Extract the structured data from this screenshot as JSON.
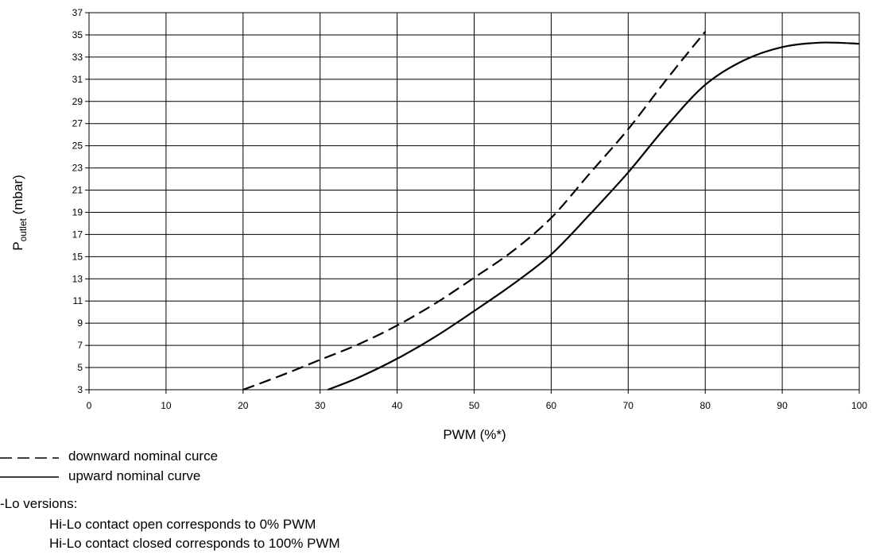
{
  "chart_data": {
    "type": "line",
    "xlabel": "PWM (%*)",
    "ylabel_main": "P",
    "ylabel_sub": "outlet",
    "ylabel_unit": " (mbar)",
    "xlim": [
      0,
      100
    ],
    "ylim": [
      3,
      37
    ],
    "x_ticks": [
      0,
      10,
      20,
      30,
      40,
      50,
      60,
      70,
      80,
      90,
      100
    ],
    "y_ticks": [
      3,
      5,
      7,
      9,
      11,
      13,
      15,
      17,
      19,
      21,
      23,
      25,
      27,
      29,
      31,
      33,
      35,
      37
    ],
    "grid": true,
    "series": [
      {
        "name": "downward nominal curce",
        "style": "dashed",
        "x": [
          20,
          25,
          30,
          35,
          40,
          45,
          50,
          55,
          60,
          65,
          70,
          75,
          80
        ],
        "y": [
          3.0,
          4.3,
          5.7,
          7.1,
          8.8,
          10.8,
          13.1,
          15.5,
          18.5,
          22.5,
          26.5,
          31.0,
          35.3
        ]
      },
      {
        "name": "upward nominal curve",
        "style": "solid",
        "x": [
          31,
          35,
          40,
          45,
          50,
          55,
          60,
          65,
          70,
          75,
          80,
          85,
          90,
          95,
          100
        ],
        "y": [
          3.0,
          4.1,
          5.8,
          7.8,
          10.1,
          12.5,
          15.2,
          18.8,
          22.6,
          26.8,
          30.5,
          32.7,
          33.9,
          34.3,
          34.2
        ]
      }
    ]
  },
  "legend": {
    "dashed_label": "downward nominal curce",
    "solid_label": "upward nominal curve"
  },
  "notes": {
    "heading": "-Lo versions:",
    "line1": "Hi-Lo contact open corresponds to 0% PWM",
    "line2": "Hi-Lo contact closed corresponds to 100% PWM"
  }
}
